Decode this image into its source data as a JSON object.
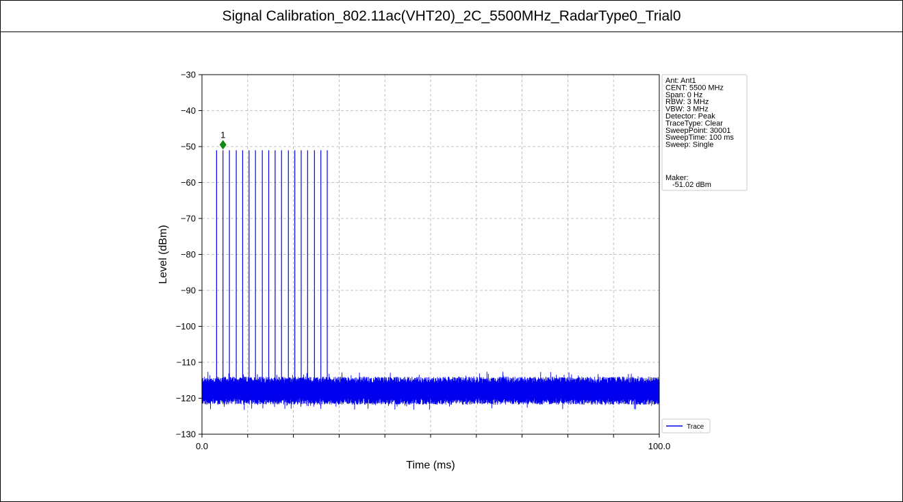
{
  "page_title": "Signal Calibration_802.11ac(VHT20)_2C_5500MHz_RadarType0_Trial0",
  "chart_data": {
    "type": "line",
    "title": "",
    "xlabel": "Time (ms)",
    "ylabel": "Level (dBm)",
    "xlim": [
      0.0,
      100.0
    ],
    "ylim": [
      -130,
      -30
    ],
    "x_tick_labels": [
      "0.0",
      "100.0"
    ],
    "y_ticks": [
      -30,
      -40,
      -50,
      -60,
      -70,
      -80,
      -90,
      -100,
      -110,
      -120,
      -130
    ],
    "grid": true,
    "noise_floor_dbm": -118,
    "pulses": {
      "x_ms": [
        3.2,
        4.6,
        6.0,
        7.5,
        8.9,
        10.3,
        11.7,
        13.2,
        14.6,
        16.0,
        17.4,
        18.9,
        20.3,
        21.7,
        23.1,
        24.6,
        26.0,
        27.4
      ],
      "level_dbm": -51.02
    },
    "marker": {
      "label": "1",
      "x_ms": 4.6,
      "y_dbm": -49.5,
      "color": "#118811"
    },
    "series": [
      {
        "name": "Trace",
        "color": "#0000ee"
      }
    ],
    "legend": {
      "position": "outside-right-bottom",
      "entries": [
        "Trace"
      ]
    },
    "info_box": {
      "lines": [
        "Ant: Ant1",
        "CENT: 5500 MHz",
        "Span: 0 Hz",
        "RBW: 3 MHz",
        "VBW: 3 MHz",
        "Detector: Peak",
        "TraceType: Clear",
        "SweepPoint: 30001",
        "SweepTime: 100 ms",
        "Sweep: Single"
      ],
      "maker_label": "Maker:",
      "maker_value": "-51.02 dBm"
    }
  }
}
